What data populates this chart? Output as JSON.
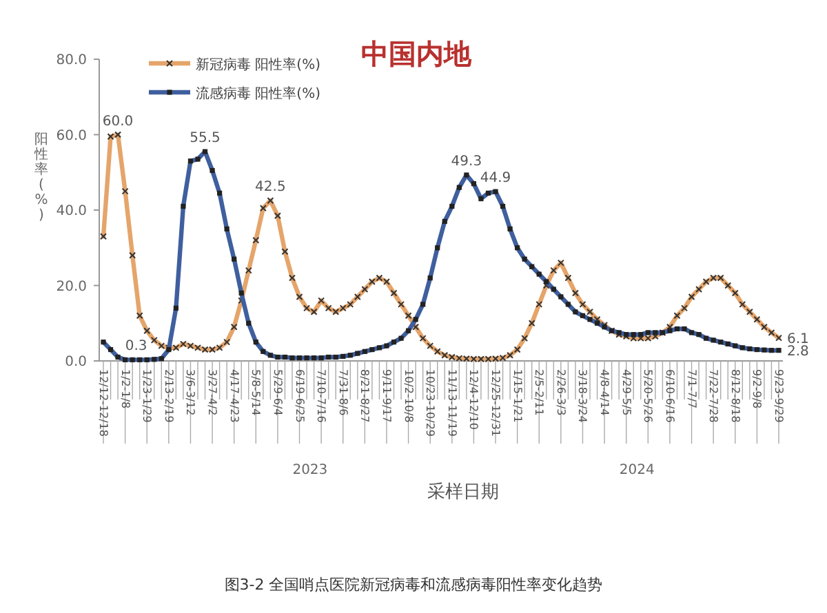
{
  "chart_data": {
    "type": "line",
    "title": "中国内地",
    "xlabel": "采样日期",
    "ylabel": "阳性率(%)",
    "annotations": [
      "图3-2 全国哨点医院新冠病毒和流感病毒阳性率变化趋势",
      "2023",
      "2024"
    ],
    "categories": [
      "12/12-12/18",
      null,
      null,
      "1/2-1/8",
      null,
      null,
      "1/23-1/29",
      null,
      null,
      "2/13-2/19",
      null,
      null,
      "3/6-3/12",
      null,
      null,
      "3/27-4/2",
      null,
      null,
      "4/17-4/23",
      null,
      null,
      "5/8-5/14",
      null,
      null,
      "5/29-6/4",
      null,
      null,
      "6/19-6/25",
      null,
      null,
      "7/10-7/16",
      null,
      null,
      "7/31-8/6",
      null,
      null,
      "8/21-8/27",
      null,
      null,
      "9/11-9/17",
      null,
      null,
      "10/2-10/8",
      null,
      null,
      "10/23-10/29",
      null,
      null,
      "11/13-11/19",
      null,
      null,
      "12/4-12/10",
      null,
      null,
      "12/25-12/31",
      null,
      null,
      "1/15-1/21",
      null,
      null,
      "2/5-2/11",
      null,
      null,
      "2/26-3/3",
      null,
      null,
      "3/18-3/24",
      null,
      null,
      "4/8-4/14",
      null,
      null,
      "4/29-5/5",
      null,
      null,
      "5/20-5/26",
      null,
      null,
      "6/10-6/16",
      null,
      null,
      "7/1-7/7",
      null,
      null,
      "7/22-7/28",
      null,
      null,
      "8/12-8/18",
      null,
      null,
      "9/2-9/8",
      null,
      null,
      "9/23-9/29"
    ],
    "ylim": [
      0,
      80
    ],
    "yticks": [
      {
        "value": 0,
        "label": "0.0"
      },
      {
        "value": 20,
        "label": "20.0"
      },
      {
        "value": 40,
        "label": "40.0"
      },
      {
        "value": 60,
        "label": "60.0"
      },
      {
        "value": 80,
        "label": "80.0"
      }
    ],
    "legend": "top left",
    "grid": false,
    "series": [
      {
        "name": "新冠病毒 阳性率(%)",
        "color": "#e5a56a",
        "marker": "cross",
        "values": [
          33,
          59.5,
          60,
          45,
          28,
          12,
          8,
          5.5,
          4,
          3.5,
          3.5,
          4.5,
          4,
          3.5,
          3,
          3,
          3.5,
          5,
          9,
          16,
          24,
          32,
          40.5,
          42.5,
          38.5,
          29,
          22,
          17,
          14,
          13,
          16,
          14,
          13,
          14,
          15,
          17,
          19,
          21,
          22,
          21,
          18,
          15,
          12,
          9,
          6,
          4,
          2.5,
          1.5,
          1,
          0.7,
          0.6,
          0.5,
          0.5,
          0.5,
          0.6,
          0.8,
          1.5,
          3,
          6,
          10,
          15,
          20,
          24,
          26,
          22,
          18,
          15,
          13,
          11,
          9.5,
          8,
          7,
          6.5,
          6,
          6,
          6,
          6.5,
          7.5,
          9,
          12,
          14,
          17,
          19,
          21,
          22,
          22,
          20,
          18,
          15,
          13,
          11,
          9,
          7.5,
          6.1
        ],
        "value_labels": [
          null,
          null,
          "60.0",
          null,
          null,
          null,
          null,
          null,
          null,
          null,
          null,
          null,
          null,
          null,
          null,
          null,
          null,
          null,
          null,
          null,
          null,
          null,
          null,
          "42.5",
          null,
          null,
          null,
          null,
          null,
          null,
          null,
          null,
          null,
          null,
          null,
          null,
          null,
          null,
          null,
          null,
          null,
          null,
          null,
          null,
          null,
          null,
          null,
          null,
          null,
          null,
          null,
          null,
          null,
          null,
          null,
          null,
          null,
          null,
          null,
          null,
          null,
          null,
          null,
          null,
          null,
          null,
          null,
          null,
          null,
          null,
          null,
          null,
          null,
          null,
          null,
          null,
          null,
          null,
          null,
          null,
          null,
          null,
          null,
          null,
          null,
          null,
          null,
          null,
          null,
          null,
          null,
          null,
          null,
          "6.1"
        ]
      },
      {
        "name": "流感病毒 阳性率(%)",
        "color": "#3f5f9e",
        "marker": "square",
        "values": [
          5,
          3,
          1,
          0.3,
          0.3,
          0.3,
          0.3,
          0.4,
          0.6,
          3,
          14,
          41,
          53,
          53.5,
          55.5,
          50.5,
          44.5,
          35,
          27,
          18,
          10,
          5,
          2.5,
          1.5,
          1,
          1,
          0.8,
          0.8,
          0.8,
          0.8,
          0.8,
          1,
          1,
          1.2,
          1.5,
          2,
          2.5,
          3,
          3.5,
          4,
          5,
          6,
          8,
          11,
          15,
          22,
          30,
          37,
          41,
          46,
          49.3,
          47,
          43,
          44.5,
          44.9,
          41,
          35,
          30,
          27,
          25,
          23,
          21,
          19,
          17,
          15,
          13,
          12,
          11,
          10,
          9,
          8,
          7.5,
          7,
          7,
          7,
          7.5,
          7.5,
          7.5,
          8,
          8.5,
          8.5,
          7.5,
          7,
          6,
          5.5,
          5,
          4.5,
          4,
          3.5,
          3.2,
          3,
          2.9,
          2.8,
          2.8
        ],
        "value_labels": [
          null,
          null,
          null,
          "0.3",
          null,
          null,
          null,
          null,
          null,
          null,
          null,
          null,
          null,
          null,
          "55.5",
          null,
          null,
          null,
          null,
          null,
          null,
          null,
          null,
          null,
          null,
          null,
          null,
          null,
          null,
          null,
          null,
          null,
          null,
          null,
          null,
          null,
          null,
          null,
          null,
          null,
          null,
          null,
          null,
          null,
          null,
          null,
          null,
          null,
          null,
          null,
          "49.3",
          null,
          null,
          null,
          "44.9",
          null,
          null,
          null,
          null,
          null,
          null,
          null,
          null,
          null,
          null,
          null,
          null,
          null,
          null,
          null,
          null,
          null,
          null,
          null,
          null,
          null,
          null,
          null,
          null,
          null,
          null,
          null,
          null,
          null,
          null,
          null,
          null,
          null,
          null,
          null,
          null,
          null,
          null,
          "2.8"
        ]
      }
    ]
  }
}
